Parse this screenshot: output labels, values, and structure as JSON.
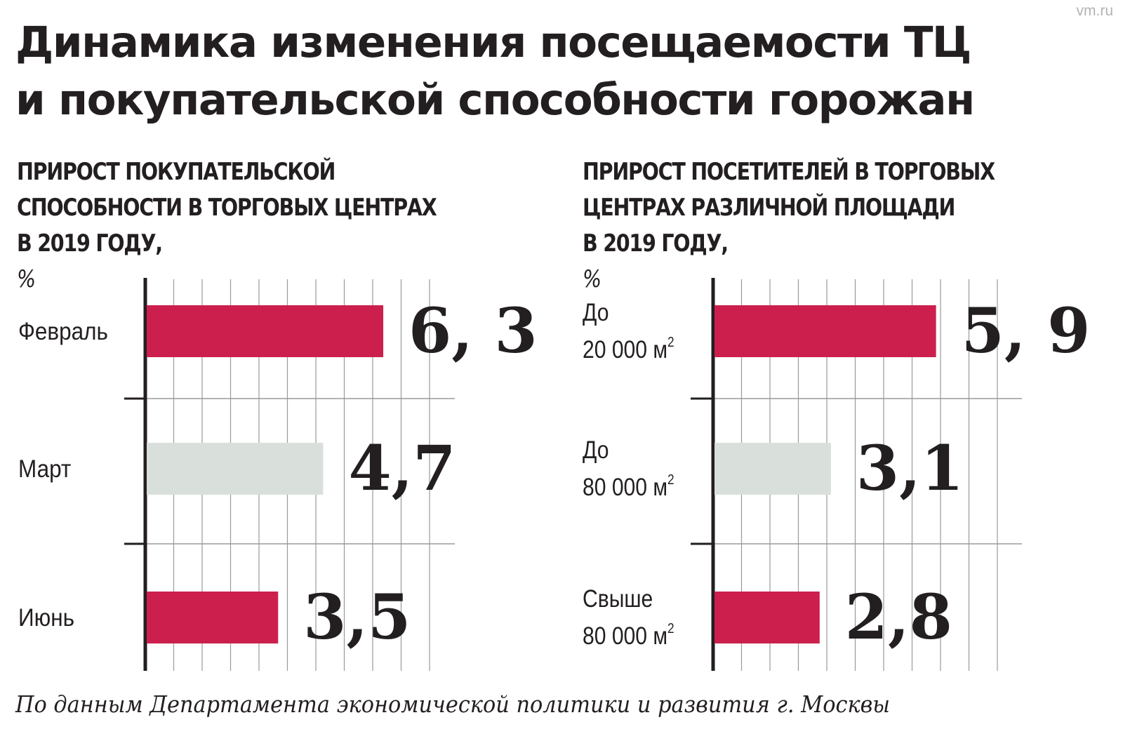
{
  "watermark": "vm.ru",
  "title": {
    "line1": "Динамика изменения посещаемости ТЦ",
    "line2": "и покупательской способности горожан"
  },
  "source": "По данным Департамента экономической политики и развития г. Москвы",
  "colors": {
    "accent": "#cc1f4e",
    "muted": "#d9dfdb",
    "text": "#231f20",
    "grid": "#9a9a9a"
  },
  "chart_data": [
    {
      "type": "bar",
      "orientation": "horizontal",
      "title_lines": [
        "ПРИРОСТ ПОКУПАТЕЛЬСКОЙ",
        "СПОСОБНОСТИ В ТОРГОВЫХ ЦЕНТРАХ",
        "В 2019 ГОДУ,"
      ],
      "unit": "%",
      "categories": [
        {
          "lines": [
            "Февраль"
          ]
        },
        {
          "lines": [
            "Март"
          ]
        },
        {
          "lines": [
            "Июнь"
          ]
        }
      ],
      "values": [
        6.3,
        4.7,
        3.5
      ],
      "value_labels": [
        "6, 3",
        "4,7",
        "3,5"
      ],
      "bar_colors": [
        "#cc1f4e",
        "#d9dfdb",
        "#cc1f4e"
      ],
      "xlim": [
        0,
        8
      ],
      "grid": true
    },
    {
      "type": "bar",
      "orientation": "horizontal",
      "title_lines": [
        "ПРИРОСТ ПОСЕТИТЕЛЕЙ В ТОРГОВЫХ",
        "ЦЕНТРАХ РАЗЛИЧНОЙ ПЛОЩАДИ",
        "В 2019 ГОДУ,"
      ],
      "unit": "%",
      "categories": [
        {
          "lines": [
            "До",
            "20 000 м"
          ],
          "sup": "2"
        },
        {
          "lines": [
            "До",
            "80 000 м"
          ],
          "sup": "2"
        },
        {
          "lines": [
            "Свыше",
            "80 000 м"
          ],
          "sup": "2"
        }
      ],
      "values": [
        5.9,
        3.1,
        2.8
      ],
      "value_labels": [
        "5, 9",
        "3,1",
        "2,8"
      ],
      "bar_colors": [
        "#cc1f4e",
        "#d9dfdb",
        "#cc1f4e"
      ],
      "xlim": [
        0,
        8
      ],
      "grid": true
    }
  ]
}
